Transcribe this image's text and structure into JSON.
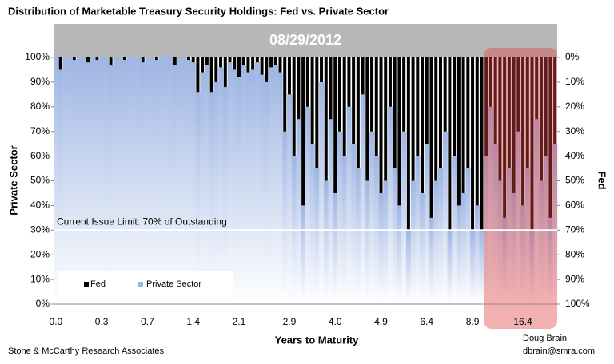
{
  "chart_data": {
    "type": "bar",
    "title": "Distribution of Marketable Treasury Security Holdings:  Fed vs. Private Sector",
    "subtitle": "08/29/2012",
    "x_label": "Years to Maturity",
    "y_label": "Private Sector",
    "y2_label": "Fed",
    "stacked": true,
    "categories": [
      "0.0",
      null,
      null,
      null,
      null,
      null,
      null,
      null,
      null,
      null,
      "0.3",
      null,
      null,
      null,
      null,
      null,
      null,
      null,
      null,
      null,
      "0.7",
      null,
      null,
      null,
      null,
      null,
      null,
      null,
      null,
      null,
      "1.4",
      null,
      null,
      null,
      null,
      null,
      null,
      null,
      null,
      null,
      "2.1",
      null,
      null,
      null,
      null,
      null,
      null,
      null,
      null,
      null,
      null,
      "2.9",
      null,
      null,
      null,
      null,
      null,
      null,
      null,
      null,
      null,
      "4.0",
      null,
      null,
      null,
      null,
      null,
      null,
      null,
      null,
      null,
      "4.9",
      null,
      null,
      null,
      null,
      null,
      null,
      null,
      null,
      null,
      "6.4",
      null,
      null,
      null,
      null,
      null,
      null,
      null,
      null,
      null,
      "8.9",
      null,
      null,
      null,
      null,
      null,
      null,
      null,
      null,
      null,
      null,
      "16.4",
      null,
      null,
      null,
      null,
      null,
      null,
      null
    ],
    "series": [
      {
        "name": "Fed",
        "color": "#000000",
        "axis": "y2",
        "values": [
          0,
          5,
          0,
          0,
          1,
          0,
          0,
          2,
          0,
          1,
          0,
          0,
          3,
          0,
          0,
          1,
          0,
          0,
          0,
          2,
          0,
          0,
          1,
          0,
          0,
          0,
          3,
          0,
          0,
          1,
          2,
          14,
          6,
          3,
          14,
          10,
          4,
          12,
          2,
          5,
          8,
          3,
          6,
          5,
          2,
          7,
          10,
          4,
          3,
          6,
          30,
          15,
          40,
          25,
          60,
          20,
          35,
          45,
          10,
          50,
          25,
          55,
          30,
          40,
          20,
          35,
          45,
          15,
          50,
          30,
          40,
          55,
          50,
          20,
          45,
          60,
          30,
          70,
          50,
          40,
          55,
          35,
          65,
          50,
          45,
          30,
          70,
          40,
          60,
          55,
          45,
          70,
          60,
          70,
          40,
          20,
          35,
          50,
          65,
          45,
          55,
          30,
          60,
          45,
          70,
          25,
          50,
          40,
          65,
          35
        ]
      },
      {
        "name": "Private Sector",
        "color": "#9fb6e3",
        "values": [
          100,
          95,
          100,
          100,
          99,
          100,
          100,
          98,
          100,
          99,
          100,
          100,
          97,
          100,
          100,
          99,
          100,
          100,
          100,
          98,
          100,
          100,
          99,
          100,
          100,
          100,
          97,
          100,
          100,
          99,
          98,
          86,
          94,
          97,
          86,
          90,
          96,
          88,
          98,
          95,
          92,
          97,
          94,
          95,
          98,
          93,
          90,
          96,
          97,
          94,
          70,
          85,
          60,
          75,
          40,
          80,
          65,
          55,
          90,
          50,
          75,
          45,
          70,
          60,
          80,
          65,
          55,
          85,
          50,
          70,
          60,
          45,
          50,
          80,
          55,
          40,
          70,
          30,
          50,
          60,
          45,
          65,
          35,
          50,
          55,
          70,
          30,
          60,
          40,
          45,
          55,
          30,
          40,
          30,
          60,
          80,
          65,
          50,
          35,
          55,
          45,
          70,
          40,
          55,
          30,
          75,
          50,
          60,
          35,
          65
        ]
      }
    ],
    "ylim": [
      0,
      100
    ],
    "yticks": [
      {
        "value": 0,
        "label": "0%"
      },
      {
        "value": 10,
        "label": "10%"
      },
      {
        "value": 20,
        "label": "20%"
      },
      {
        "value": 30,
        "label": "30%"
      },
      {
        "value": 40,
        "label": "40%"
      },
      {
        "value": 50,
        "label": "50%"
      },
      {
        "value": 60,
        "label": "60%"
      },
      {
        "value": 70,
        "label": "70%"
      },
      {
        "value": 80,
        "label": "80%"
      },
      {
        "value": 90,
        "label": "90%"
      },
      {
        "value": 100,
        "label": "100%"
      }
    ],
    "y2lim": [
      100,
      0
    ],
    "y2ticks": [
      {
        "value": 0,
        "label": "0%"
      },
      {
        "value": 10,
        "label": "10%"
      },
      {
        "value": 20,
        "label": "20%"
      },
      {
        "value": 30,
        "label": "30%"
      },
      {
        "value": 40,
        "label": "40%"
      },
      {
        "value": 50,
        "label": "50%"
      },
      {
        "value": 60,
        "label": "60%"
      },
      {
        "value": 70,
        "label": "70%"
      },
      {
        "value": 80,
        "label": "80%"
      },
      {
        "value": 90,
        "label": "90%"
      },
      {
        "value": 100,
        "label": "100%"
      }
    ],
    "limit_line": {
      "value": 30,
      "label": "Current Issue Limit: 70% of Outstanding"
    },
    "legend": "lower left",
    "source": "Stone & McCarthy Research Associates",
    "author": "Doug Brain",
    "email": "dbrain@smra.com"
  }
}
